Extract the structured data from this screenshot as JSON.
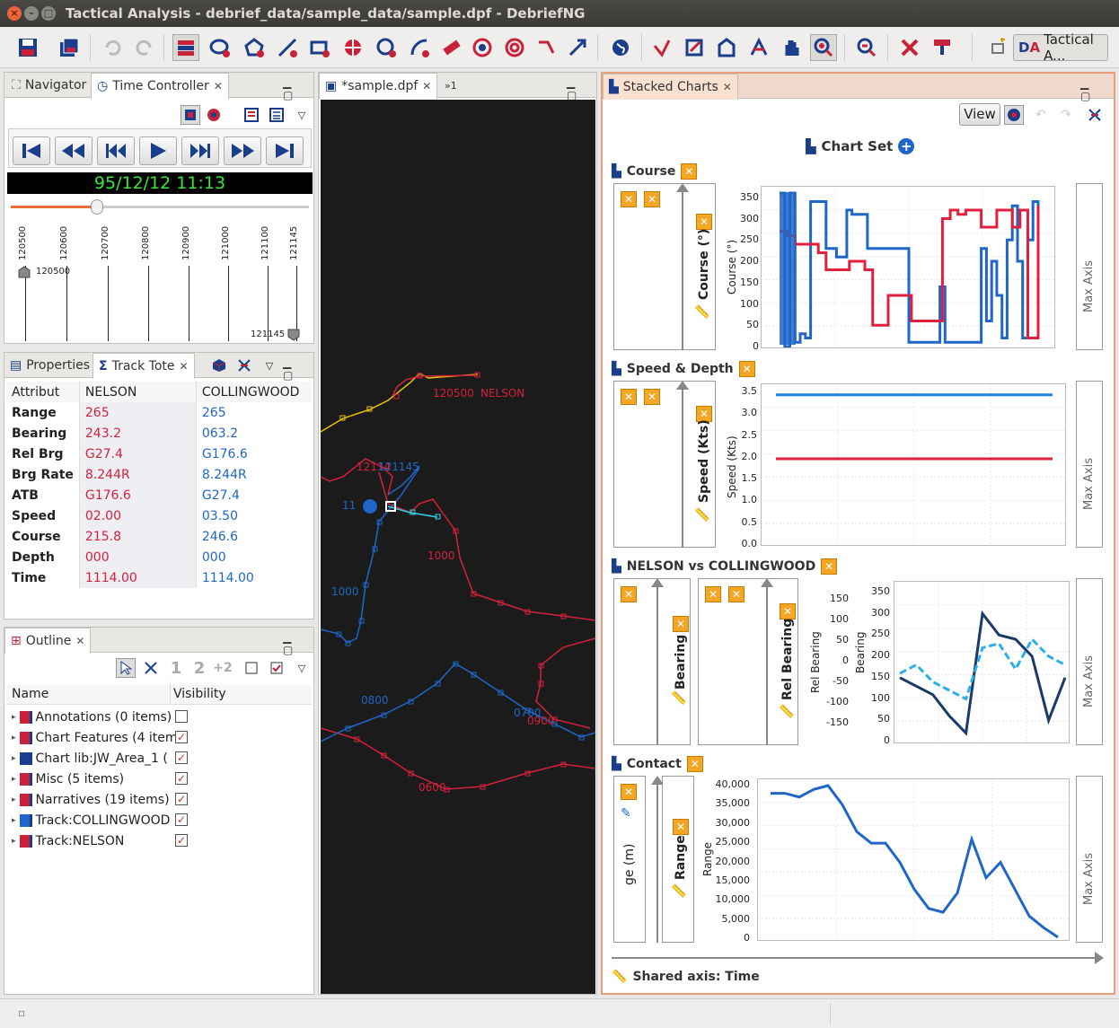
{
  "window": {
    "title": "Tactical Analysis - debrief_data/sample_data/sample.dpf - DebriefNG"
  },
  "toolbar": {
    "perspective_label": "Tactical A..."
  },
  "left_top": {
    "tabs": [
      "Navigator",
      "Time Controller"
    ],
    "clock": "95/12/12 11:13",
    "ticks": [
      "120500",
      "120600",
      "120700",
      "120800",
      "120900",
      "121000",
      "121100",
      "121145"
    ],
    "start_marker": "120500",
    "end_marker": "121145"
  },
  "track_tote": {
    "tabs": [
      "Properties",
      "Track Tote"
    ],
    "headers": [
      "Attribut",
      "NELSON",
      "COLLINGWOOD"
    ],
    "rows": [
      [
        "Range",
        "265",
        "265"
      ],
      [
        "Bearing",
        "243.2",
        "063.2"
      ],
      [
        "Rel Brg",
        "G27.4",
        "G176.6"
      ],
      [
        "Brg Rate",
        "8.244R",
        "8.244R"
      ],
      [
        "ATB",
        "G176.6",
        "G27.4"
      ],
      [
        "Speed",
        "02.00",
        "03.50"
      ],
      [
        "Course",
        "215.8",
        "246.6"
      ],
      [
        "Depth",
        "000",
        "000"
      ],
      [
        "Time",
        "1114.00",
        "1114.00"
      ]
    ]
  },
  "outline": {
    "tab": "Outline",
    "headers": [
      "Name",
      "Visibility"
    ],
    "items": [
      {
        "label": "Annotations (0 items)",
        "checked": false
      },
      {
        "label": "Chart Features (4 item",
        "checked": true
      },
      {
        "label": "Chart lib:JW_Area_1 (",
        "checked": true
      },
      {
        "label": "Misc (5 items)",
        "checked": true
      },
      {
        "label": "Narratives (19 items)",
        "checked": true
      },
      {
        "label": "Track:COLLINGWOOD",
        "checked": true
      },
      {
        "label": "Track:NELSON",
        "checked": true
      }
    ]
  },
  "editor": {
    "tab": "*sample.dpf",
    "overflow": "»1",
    "labels": {
      "nelson_start": "120500",
      "nelson_name": "NELSON",
      "t121145a": "12114",
      "t121145b": "121145",
      "t1000n": "1000",
      "t1000c": "1000",
      "t0800": "0800",
      "t0700": "0700",
      "t0900": "0900",
      "t0600": "0600",
      "t11": "11"
    }
  },
  "stacked": {
    "tab": "Stacked Charts",
    "view_label": "View",
    "chart_set": "Chart Set",
    "shared_axis": "Shared axis: Time",
    "max_axis": "Max Axis",
    "course": {
      "title": "Course",
      "axis_label": "Course (°)",
      "yticks": [
        "350",
        "300",
        "250",
        "200",
        "150",
        "100",
        "50",
        "0"
      ]
    },
    "speed": {
      "title": "Speed & Depth",
      "axis_label": "Speed (Kts)",
      "yticks": [
        "3.5",
        "3.0",
        "2.5",
        "2.0",
        "1.5",
        "1.0",
        "0.5",
        "0.0"
      ]
    },
    "nvc": {
      "title": "NELSON vs COLLINGWOOD",
      "axis1": "Bearing",
      "axis2": "Rel Bearing",
      "relticks": [
        "150",
        "100",
        "50",
        "0",
        "-50",
        "-100",
        "-150"
      ],
      "brgticks": [
        "350",
        "300",
        "250",
        "200",
        "150",
        "100",
        "50",
        "0"
      ]
    },
    "contact": {
      "title": "Contact",
      "axis1": "ge (m)",
      "axis2": "Range",
      "yticks": [
        "40,000",
        "35,000",
        "30,000",
        "25,000",
        "20,000",
        "15,000",
        "10,000",
        "5,000",
        "0"
      ]
    }
  },
  "chart_data": [
    {
      "type": "line",
      "title": "Course",
      "ylabel": "Course (°)",
      "ylim": [
        0,
        360
      ],
      "series": [
        {
          "name": "COLLINGWOOD",
          "color": "#1f66c8",
          "x": [
            0,
            2,
            4,
            6,
            8,
            10,
            12,
            14,
            16,
            18,
            20,
            22,
            24,
            26,
            28,
            30,
            32,
            34,
            36,
            38,
            40,
            42,
            44,
            46,
            48,
            50,
            52,
            54,
            56,
            58,
            60,
            62,
            64,
            66,
            68,
            70,
            72,
            74,
            76,
            78,
            80,
            82,
            84,
            86,
            88,
            90,
            92,
            94,
            96,
            98,
            100
          ],
          "values": [
            360,
            0,
            360,
            10,
            30,
            20,
            340,
            340,
            340,
            230,
            230,
            210,
            210,
            320,
            310,
            310,
            310,
            230,
            230,
            230,
            230,
            230,
            230,
            230,
            230,
            10,
            10,
            10,
            10,
            10,
            10,
            140,
            10,
            10,
            10,
            10,
            10,
            10,
            10,
            230,
            60,
            200,
            120,
            20,
            250,
            330,
            200,
            20,
            250,
            340,
            40
          ]
        },
        {
          "name": "NELSON",
          "color": "#e0203c",
          "x": [
            0,
            3,
            6,
            9,
            12,
            15,
            18,
            21,
            24,
            27,
            30,
            33,
            36,
            39,
            42,
            45,
            48,
            51,
            54,
            57,
            60,
            63,
            66,
            69,
            72,
            75,
            78,
            81,
            84,
            87,
            90,
            93,
            96,
            100
          ],
          "values": [
            270,
            260,
            240,
            240,
            240,
            220,
            180,
            180,
            180,
            200,
            200,
            180,
            50,
            50,
            120,
            120,
            120,
            60,
            60,
            60,
            60,
            300,
            320,
            310,
            320,
            320,
            280,
            280,
            320,
            320,
            280,
            320,
            20,
            330
          ]
        }
      ]
    },
    {
      "type": "line",
      "title": "Speed & Depth",
      "ylabel": "Speed (Kts)",
      "ylim": [
        0,
        3.6
      ],
      "series": [
        {
          "name": "COLLINGWOOD",
          "color": "#1f86e0",
          "x": [
            0,
            100
          ],
          "values": [
            3.5,
            3.5
          ]
        },
        {
          "name": "NELSON",
          "color": "#e0203c",
          "x": [
            0,
            100
          ],
          "values": [
            2.0,
            2.0
          ]
        }
      ]
    },
    {
      "type": "line",
      "title": "NELSON vs COLLINGWOOD",
      "ylabel": "Bearing",
      "ylim": [
        0,
        360
      ],
      "series": [
        {
          "color": "#1a3a6a",
          "x": [
            0,
            10,
            20,
            30,
            40,
            50,
            60,
            70,
            80,
            90,
            100
          ],
          "values": [
            150,
            130,
            110,
            60,
            20,
            300,
            250,
            240,
            200,
            50,
            150
          ]
        },
        {
          "color": "#2ab0e8",
          "x": [
            0,
            10,
            20,
            30,
            40,
            50,
            60,
            70,
            80,
            90,
            100
          ],
          "values": [
            160,
            180,
            140,
            120,
            100,
            220,
            230,
            170,
            240,
            200,
            180
          ]
        }
      ]
    },
    {
      "type": "line",
      "title": "Contact",
      "ylabel": "Range",
      "ylim": [
        0,
        40000
      ],
      "series": [
        {
          "color": "#1f66c8",
          "x": [
            0,
            5,
            10,
            15,
            20,
            25,
            30,
            35,
            40,
            45,
            50,
            55,
            60,
            65,
            70,
            75,
            80,
            85,
            90,
            95,
            100
          ],
          "values": [
            38000,
            38000,
            37000,
            39000,
            40000,
            35000,
            28000,
            25000,
            25000,
            20000,
            13000,
            8000,
            7000,
            12000,
            26000,
            16000,
            20000,
            13000,
            6000,
            3000,
            500
          ]
        }
      ]
    }
  ]
}
